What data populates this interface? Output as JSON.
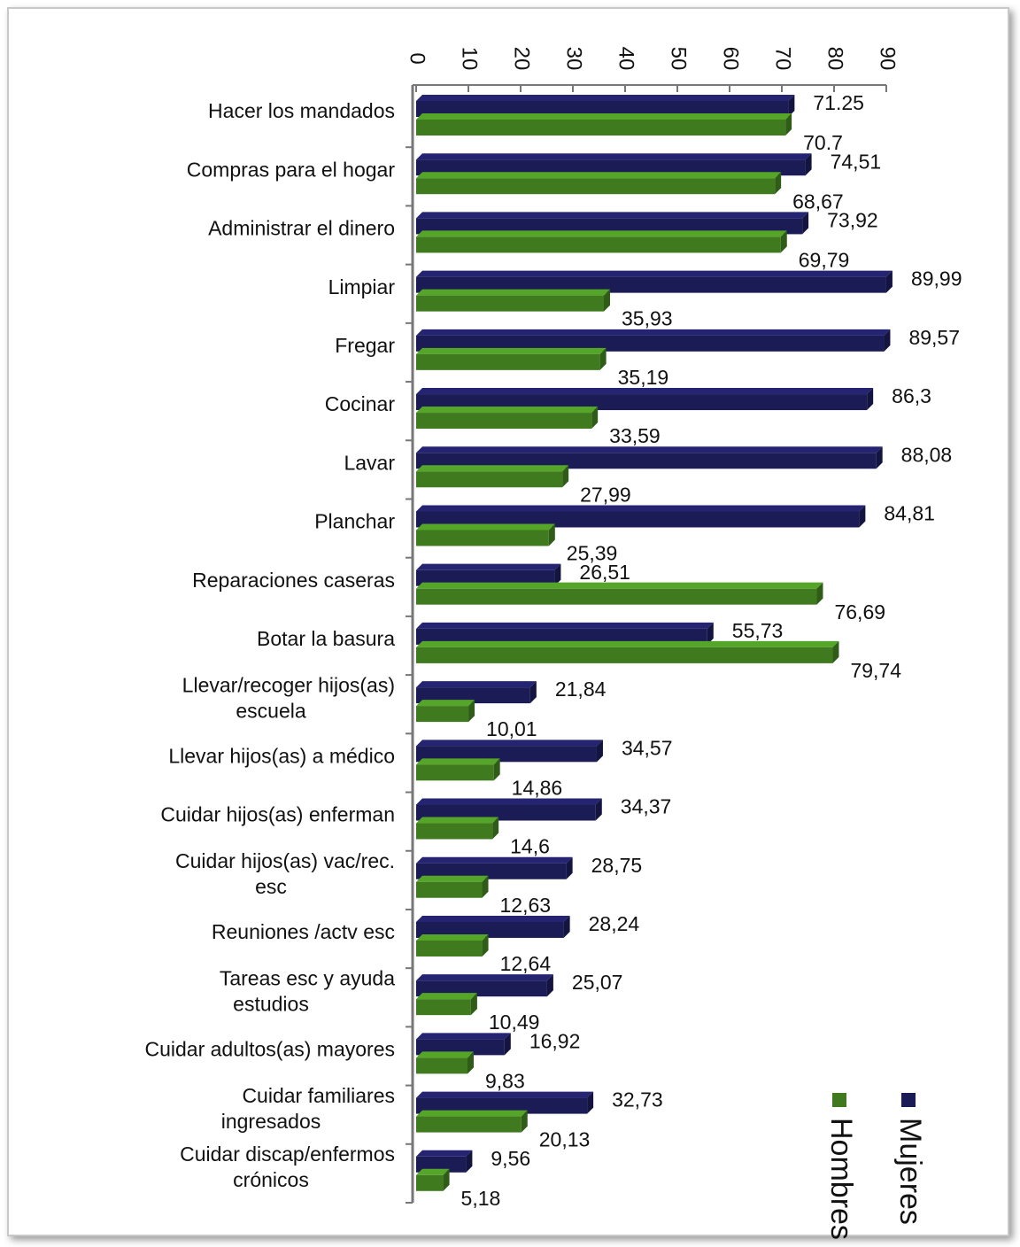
{
  "chart_data": {
    "type": "bar",
    "orientation": "horizontal",
    "categories": [
      [
        "Hacer los mandados"
      ],
      [
        "Compras para el hogar"
      ],
      [
        "Administrar el dinero"
      ],
      [
        "Limpiar"
      ],
      [
        "Fregar"
      ],
      [
        "Cocinar"
      ],
      [
        "Lavar"
      ],
      [
        "Planchar"
      ],
      [
        "Reparaciones caseras"
      ],
      [
        "Botar la basura"
      ],
      [
        "Llevar/recoger hijos(as)",
        "escuela"
      ],
      [
        "Llevar hijos(as) a médico"
      ],
      [
        "Cuidar hijos(as) enferman"
      ],
      [
        "Cuidar hijos(as) vac/rec.",
        "esc"
      ],
      [
        "Reuniones /actv esc"
      ],
      [
        "Tareas esc y ayuda",
        "estudios"
      ],
      [
        "Cuidar adultos(as) mayores"
      ],
      [
        "Cuidar familiares",
        "ingresados"
      ],
      [
        "Cuidar discap/enfermos",
        "crónicos"
      ]
    ],
    "series": [
      {
        "name": "Mujeres",
        "color": "#1b1b55",
        "values": [
          71.25,
          74.51,
          73.92,
          89.99,
          89.57,
          86.3,
          88.08,
          84.81,
          26.51,
          55.73,
          21.84,
          34.57,
          34.37,
          28.75,
          28.24,
          25.07,
          16.92,
          32.73,
          9.56
        ],
        "labels": [
          "71.25",
          "74,51",
          "73,92",
          "89,99",
          "89,57",
          "86,3",
          "88,08",
          "84,81",
          "26,51",
          "55,73",
          "21,84",
          "34,57",
          "34,37",
          "28,75",
          "28,24",
          "25,07",
          "16,92",
          "32,73",
          "9,56"
        ]
      },
      {
        "name": "Hombres",
        "color": "#3f7a1e",
        "values": [
          70.7,
          68.67,
          69.79,
          35.93,
          35.19,
          33.59,
          27.99,
          25.39,
          76.69,
          79.74,
          10.01,
          14.86,
          14.6,
          12.63,
          12.64,
          10.49,
          9.83,
          20.13,
          5.18
        ],
        "labels": [
          "70.7",
          "68,67",
          "69,79",
          "35,93",
          "35,19",
          "33,59",
          "27,99",
          "25,39",
          "76,69",
          "79,74",
          "10,01",
          "14,86",
          "14,6",
          "12,63",
          "12,64",
          "10,49",
          "9,83",
          "20,13",
          "5,18"
        ]
      }
    ],
    "xlim": [
      0,
      90
    ],
    "ticks": [
      "0",
      "10",
      "20",
      "30",
      "40",
      "50",
      "60",
      "70",
      "80",
      "90"
    ],
    "legend_position": "bottom-right",
    "grid": false
  }
}
